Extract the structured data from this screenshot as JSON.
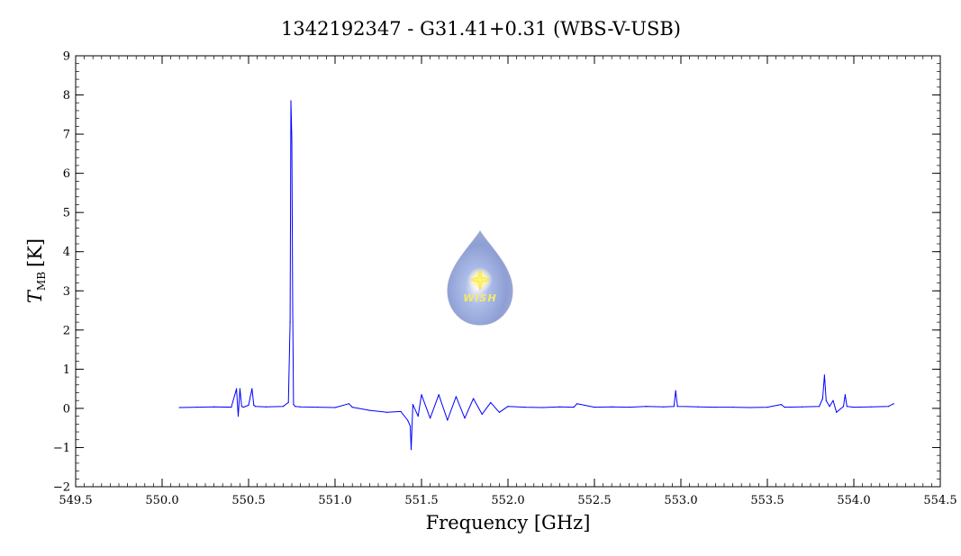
{
  "chart_data": {
    "type": "line",
    "title": "1342192347 - G31.41+0.31 (WBS-V-USB)",
    "xlabel": "Frequency [GHz]",
    "ylabel_main": "T",
    "ylabel_sub": "MB",
    "ylabel_unit": "[K]",
    "xlim": [
      549.5,
      554.5
    ],
    "ylim": [
      -2,
      9
    ],
    "x_ticks": [
      "549.5",
      "550.0",
      "550.5",
      "551.0",
      "551.5",
      "552.0",
      "552.5",
      "553.0",
      "553.5",
      "554.0",
      "554.5"
    ],
    "y_ticks": [
      "−2",
      "−1",
      "0",
      "1",
      "2",
      "3",
      "4",
      "5",
      "6",
      "7",
      "8",
      "9"
    ],
    "grid": false,
    "series": [
      {
        "color": "#0000ff",
        "x": [
          550.1,
          550.2,
          550.3,
          550.4,
          550.43,
          550.44,
          550.45,
          550.46,
          550.47,
          550.5,
          550.52,
          550.53,
          550.54,
          550.6,
          550.7,
          550.73,
          550.74,
          550.745,
          550.75,
          550.755,
          550.76,
          550.77,
          550.8,
          550.9,
          551.0,
          551.08,
          551.1,
          551.2,
          551.3,
          551.38,
          551.42,
          551.435,
          551.44,
          551.45,
          551.48,
          551.5,
          551.55,
          551.6,
          551.65,
          551.7,
          551.75,
          551.8,
          551.85,
          551.9,
          551.95,
          552.0,
          552.1,
          552.2,
          552.3,
          552.38,
          552.4,
          552.5,
          552.6,
          552.7,
          552.8,
          552.9,
          552.96,
          552.97,
          552.98,
          553.1,
          553.2,
          553.3,
          553.4,
          553.5,
          553.58,
          553.6,
          553.7,
          553.8,
          553.82,
          553.83,
          553.84,
          553.86,
          553.88,
          553.9,
          553.94,
          553.95,
          553.96,
          554.0,
          554.1,
          554.2,
          554.23
        ],
        "y": [
          0.02,
          0.03,
          0.04,
          0.03,
          0.5,
          -0.2,
          0.5,
          0.05,
          0.03,
          0.08,
          0.5,
          0.08,
          0.05,
          0.04,
          0.05,
          0.15,
          2.2,
          7.85,
          6.9,
          2.5,
          0.1,
          0.05,
          0.04,
          0.03,
          0.02,
          0.12,
          0.03,
          -0.05,
          -0.1,
          -0.08,
          -0.3,
          -0.45,
          -1.05,
          0.1,
          -0.2,
          0.35,
          -0.25,
          0.35,
          -0.3,
          0.3,
          -0.25,
          0.25,
          -0.15,
          0.15,
          -0.1,
          0.05,
          0.03,
          0.02,
          0.04,
          0.03,
          0.12,
          0.03,
          0.04,
          0.03,
          0.05,
          0.04,
          0.05,
          0.45,
          0.05,
          0.04,
          0.03,
          0.03,
          0.02,
          0.03,
          0.1,
          0.03,
          0.04,
          0.05,
          0.25,
          0.85,
          0.2,
          0.05,
          0.2,
          -0.1,
          0.05,
          0.35,
          0.05,
          0.03,
          0.04,
          0.05,
          0.12
        ]
      }
    ]
  },
  "logo": {
    "text": "WISH"
  }
}
